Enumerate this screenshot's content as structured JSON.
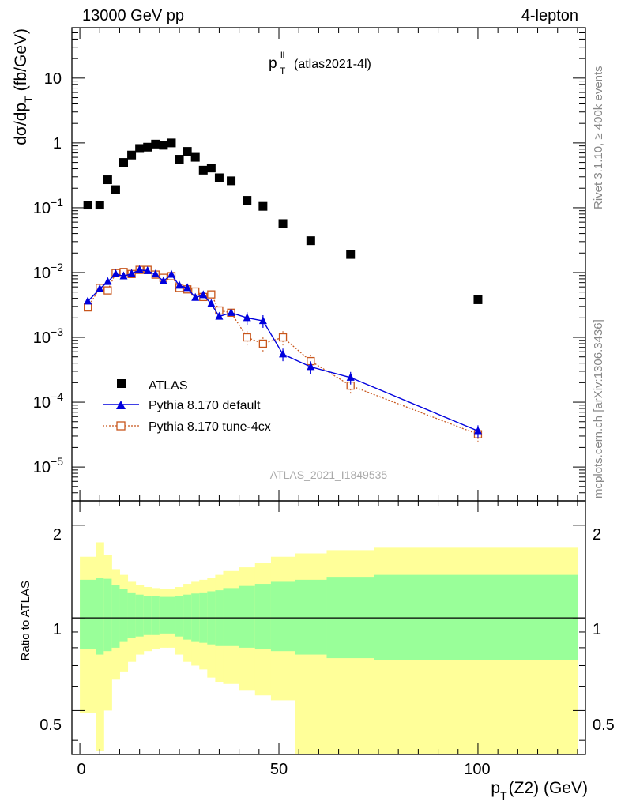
{
  "header": {
    "left": "13000 GeV pp",
    "right": "4-lepton",
    "title_main": "p",
    "title_sup": "ll",
    "title_sub": "T",
    "title_note": "(atlas2021-4l)",
    "analysis_id": "ATLAS_2021_I1849535",
    "side_rivet": "Rivet 3.1.10, ≥ 400k events",
    "side_mcplots": "mcplots.cern.ch [arXiv:1306.3436]"
  },
  "axes": {
    "ylabel_main": "dσ/dp",
    "ylabel_main_sub": "T",
    "ylabel_main_unit": "(fb/GeV)",
    "ylabel_ratio": "Ratio to ATLAS",
    "xlabel": "p",
    "xlabel_sub": "T",
    "xlabel_rest": "(Z2) (GeV)",
    "x_ticks": [
      "0",
      "50",
      "100"
    ],
    "ratio_ticks": [
      "2",
      "1",
      "0.5"
    ],
    "main_ticks": [
      {
        "base": "10",
        "exp": "",
        "v": 10
      },
      {
        "base": "1",
        "exp": "",
        "v": 1
      },
      {
        "base": "10",
        "exp": "−1",
        "v": 0.1
      },
      {
        "base": "10",
        "exp": "−2",
        "v": 0.01
      },
      {
        "base": "10",
        "exp": "−3",
        "v": 0.001
      },
      {
        "base": "10",
        "exp": "−4",
        "v": 0.0001
      },
      {
        "base": "10",
        "exp": "−5",
        "v": 1e-05
      }
    ]
  },
  "legend": {
    "atlas": "ATLAS",
    "default": "Pythia 8.170 default",
    "tune": "Pythia 8.170 tune-4cx"
  },
  "colors": {
    "atlas": "#000000",
    "default": "#0000dd",
    "tune": "#c8561c",
    "band_outer": "#ffff99",
    "band_inner": "#99ff99"
  },
  "chart_data": {
    "type": "scatter",
    "xlim": [
      -2,
      127
    ],
    "ylim": [
      3e-06,
      60
    ],
    "yscale": "log",
    "ratio_ylim": [
      0.36,
      2.4
    ],
    "ratio_scale": "log",
    "series": [
      {
        "name": "ATLAS",
        "x": [
          2,
          5,
          7,
          9,
          11,
          13,
          15,
          17,
          19,
          21,
          23,
          25,
          27,
          29,
          31,
          33,
          35,
          38,
          42,
          46,
          51,
          58,
          68,
          100
        ],
        "y": [
          0.11,
          0.11,
          0.27,
          0.19,
          0.5,
          0.65,
          0.82,
          0.86,
          0.96,
          0.92,
          1.0,
          0.56,
          0.74,
          0.6,
          0.38,
          0.41,
          0.29,
          0.26,
          0.13,
          0.105,
          0.057,
          0.031,
          0.019,
          0.0038
        ]
      },
      {
        "name": "Pythia 8.170 default",
        "x": [
          2,
          5,
          7,
          9,
          11,
          13,
          15,
          17,
          19,
          21,
          23,
          25,
          27,
          29,
          31,
          33,
          35,
          38,
          42,
          46,
          51,
          58,
          68,
          100
        ],
        "y": [
          0.0036,
          0.0056,
          0.0072,
          0.0095,
          0.0088,
          0.0096,
          0.011,
          0.0106,
          0.0094,
          0.0074,
          0.0093,
          0.0063,
          0.0058,
          0.0041,
          0.0045,
          0.0033,
          0.0021,
          0.0024,
          0.002,
          0.0018,
          0.00055,
          0.00035,
          0.00024,
          3.6e-05
        ]
      },
      {
        "name": "Pythia 8.170 tune-4cx",
        "x": [
          2,
          5,
          7,
          9,
          11,
          13,
          15,
          17,
          19,
          21,
          23,
          25,
          27,
          29,
          31,
          33,
          35,
          38,
          42,
          46,
          51,
          58,
          68,
          100
        ],
        "y": [
          0.0029,
          0.0058,
          0.0053,
          0.0098,
          0.0102,
          0.0095,
          0.011,
          0.011,
          0.0093,
          0.0083,
          0.0088,
          0.0058,
          0.0055,
          0.0051,
          0.0042,
          0.0046,
          0.0026,
          0.0024,
          0.001,
          0.0008,
          0.001,
          0.00043,
          0.00018,
          3.2e-05
        ]
      }
    ],
    "ratio_band_edges": [
      0,
      3,
      4,
      6,
      8,
      10,
      12,
      14,
      16,
      18,
      20,
      22,
      24,
      26,
      28,
      30,
      32,
      34,
      36,
      40,
      44,
      48,
      54,
      62,
      74,
      125
    ],
    "ratio_band_inner_hi": [
      1.33,
      1.33,
      1.35,
      1.34,
      1.28,
      1.24,
      1.21,
      1.19,
      1.18,
      1.18,
      1.17,
      1.17,
      1.18,
      1.19,
      1.2,
      1.21,
      1.22,
      1.23,
      1.25,
      1.27,
      1.29,
      1.31,
      1.33,
      1.36,
      1.38
    ],
    "ratio_band_inner_lo": [
      0.79,
      0.79,
      0.76,
      0.78,
      0.8,
      0.84,
      0.86,
      0.87,
      0.88,
      0.88,
      0.89,
      0.89,
      0.87,
      0.85,
      0.84,
      0.83,
      0.82,
      0.81,
      0.81,
      0.8,
      0.79,
      0.78,
      0.76,
      0.74,
      0.73
    ],
    "ratio_band_outer_hi": [
      1.58,
      1.58,
      1.76,
      1.6,
      1.44,
      1.38,
      1.31,
      1.28,
      1.26,
      1.25,
      1.24,
      1.24,
      1.26,
      1.29,
      1.31,
      1.33,
      1.35,
      1.38,
      1.42,
      1.46,
      1.51,
      1.58,
      1.62,
      1.66,
      1.69
    ],
    "ratio_band_outer_lo": [
      0.49,
      0.49,
      0.37,
      0.5,
      0.63,
      0.67,
      0.72,
      0.76,
      0.78,
      0.79,
      0.8,
      0.8,
      0.76,
      0.72,
      0.7,
      0.68,
      0.64,
      0.62,
      0.61,
      0.58,
      0.56,
      0.54,
      0.36,
      0.36,
      0.36
    ],
    "ratio_reference": 1
  }
}
